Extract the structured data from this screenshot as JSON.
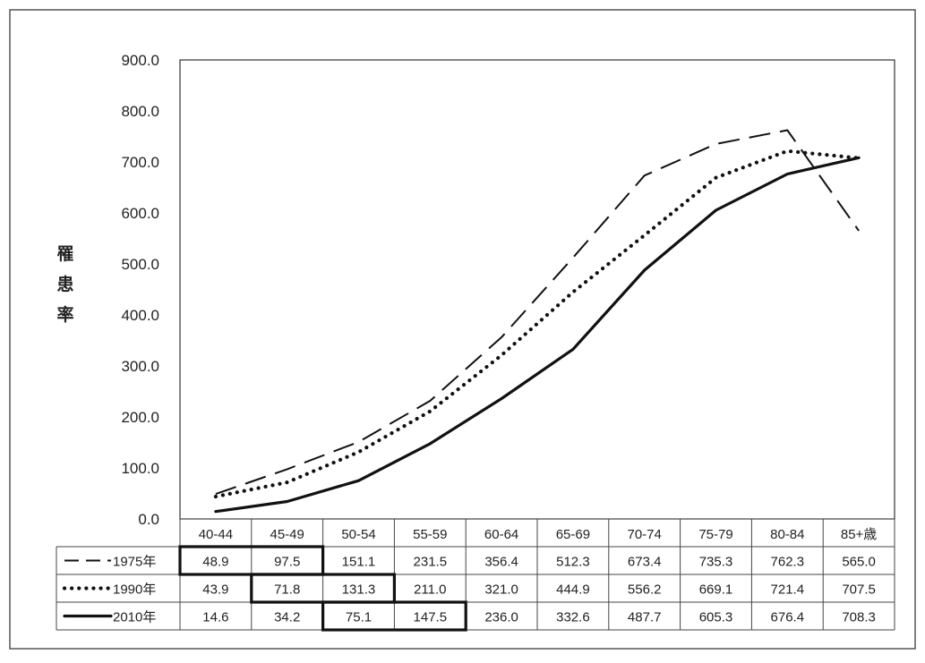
{
  "chart_data": {
    "type": "line",
    "title": "",
    "xlabel": "",
    "ylabel": [
      "罹",
      "患",
      "率"
    ],
    "ylim": [
      0,
      900
    ],
    "yticks": [
      "0.0",
      "100.0",
      "200.0",
      "300.0",
      "400.0",
      "500.0",
      "600.0",
      "700.0",
      "800.0",
      "900.0"
    ],
    "categories": [
      "40-44",
      "45-49",
      "50-54",
      "55-59",
      "60-64",
      "65-69",
      "70-74",
      "75-79",
      "80-84",
      "85+歳"
    ],
    "series": [
      {
        "name": "1975年",
        "style": "dashed",
        "values": [
          48.9,
          97.5,
          151.1,
          231.5,
          356.4,
          512.3,
          673.4,
          735.3,
          762.3,
          565.0
        ],
        "labels": [
          "48.9",
          "97.5",
          "151.1",
          "231.5",
          "356.4",
          "512.3",
          "673.4",
          "735.3",
          "762.3",
          "565.0"
        ],
        "highlighted": [
          0,
          1
        ]
      },
      {
        "name": "1990年",
        "style": "dotted",
        "values": [
          43.9,
          71.8,
          131.3,
          211.0,
          321.0,
          444.9,
          556.2,
          669.1,
          721.4,
          707.5
        ],
        "labels": [
          "43.9",
          "71.8",
          "131.3",
          "211.0",
          "321.0",
          "444.9",
          "556.2",
          "669.1",
          "721.4",
          "707.5"
        ],
        "highlighted": [
          1,
          2
        ]
      },
      {
        "name": "2010年",
        "style": "solid",
        "values": [
          14.6,
          34.2,
          75.1,
          147.5,
          236.0,
          332.6,
          487.7,
          605.3,
          676.4,
          708.3
        ],
        "labels": [
          "14.6",
          "34.2",
          "75.1",
          "147.5",
          "236.0",
          "332.6",
          "487.7",
          "605.3",
          "676.4",
          "708.3"
        ],
        "highlighted": [
          2,
          3
        ]
      }
    ],
    "grid": false,
    "legend": "data-table"
  }
}
